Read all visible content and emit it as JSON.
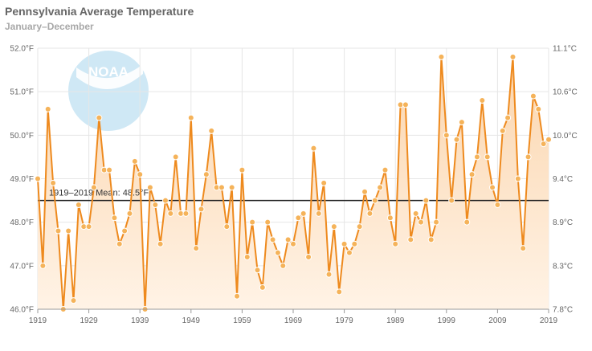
{
  "header": {
    "title": "Pennsylvania Average Temperature",
    "subtitle": "January–December"
  },
  "logo": {
    "text": "NOAA",
    "icon": "noaa-logo-icon"
  },
  "colors": {
    "line": "#ee8a1e",
    "marker": "#f5b35a",
    "marker_stroke": "#ffffff",
    "area_top": "#fbd5ad",
    "area_bottom": "#fff3e6",
    "mean_line": "#222222",
    "grid": "#e6e6e6",
    "logo": "#bfe0f2"
  },
  "chart_data": {
    "type": "line",
    "title": "Pennsylvania Average Temperature",
    "subtitle": "January–December",
    "x": [
      1919,
      1920,
      1921,
      1922,
      1923,
      1924,
      1925,
      1926,
      1927,
      1928,
      1929,
      1930,
      1931,
      1932,
      1933,
      1934,
      1935,
      1936,
      1937,
      1938,
      1939,
      1940,
      1941,
      1942,
      1943,
      1944,
      1945,
      1946,
      1947,
      1948,
      1949,
      1950,
      1951,
      1952,
      1953,
      1954,
      1955,
      1956,
      1957,
      1958,
      1959,
      1960,
      1961,
      1962,
      1963,
      1964,
      1965,
      1966,
      1967,
      1968,
      1969,
      1970,
      1971,
      1972,
      1973,
      1974,
      1975,
      1976,
      1977,
      1978,
      1979,
      1980,
      1981,
      1982,
      1983,
      1984,
      1985,
      1986,
      1987,
      1988,
      1989,
      1990,
      1991,
      1992,
      1993,
      1994,
      1995,
      1996,
      1997,
      1998,
      1999,
      2000,
      2001,
      2002,
      2003,
      2004,
      2005,
      2006,
      2007,
      2008,
      2009,
      2010,
      2011,
      2012,
      2013,
      2014,
      2015,
      2016,
      2017,
      2018,
      2019
    ],
    "series": [
      {
        "values": [
          49.0,
          47.0,
          50.6,
          48.9,
          47.8,
          46.0,
          47.8,
          46.2,
          48.4,
          47.9,
          47.9,
          48.8,
          50.4,
          49.2,
          49.2,
          48.1,
          47.5,
          47.8,
          48.2,
          49.4,
          49.1,
          46.0,
          48.8,
          48.4,
          47.5,
          48.5,
          48.2,
          49.5,
          48.2,
          48.2,
          50.4,
          47.4,
          48.3,
          49.1,
          50.1,
          48.8,
          48.8,
          47.9,
          48.8,
          46.3,
          49.2,
          47.2,
          48.0,
          46.9,
          46.5,
          48.0,
          47.6,
          47.3,
          47.0,
          47.6,
          47.5,
          48.1,
          48.2,
          47.2,
          49.7,
          48.2,
          48.9,
          46.8,
          47.9,
          46.4,
          47.5,
          47.3,
          47.5,
          47.9,
          48.7,
          48.2,
          48.5,
          48.8,
          49.2,
          48.1,
          47.5,
          50.7,
          50.7,
          47.6,
          48.2,
          48.0,
          48.5,
          47.6,
          48.0,
          51.8,
          50.0,
          48.5,
          49.9,
          50.3,
          48.0,
          49.1,
          49.5,
          50.8,
          49.5,
          48.8,
          48.4,
          50.1,
          50.4,
          51.8,
          49.0,
          47.4,
          49.5,
          50.9,
          50.6,
          49.8,
          49.9
        ]
      }
    ],
    "y_left": {
      "ticks": [
        "46.0°F",
        "47.0°F",
        "48.0°F",
        "49.0°F",
        "50.0°F",
        "51.0°F",
        "52.0°F"
      ],
      "lim": [
        46.0,
        52.0
      ]
    },
    "y_right": {
      "ticks": [
        "7.8°C",
        "8.3°C",
        "8.9°C",
        "9.4°C",
        "10.0°C",
        "10.6°C",
        "11.1°C"
      ]
    },
    "x_ticks": [
      "1919",
      "1929",
      "1939",
      "1949",
      "1959",
      "1969",
      "1979",
      "1989",
      "1999",
      "2009",
      "2019"
    ],
    "xlim": [
      1919,
      2019
    ],
    "mean": {
      "value": 48.5,
      "label": "1919–2019 Mean: 48.5°F"
    },
    "grid": true,
    "legend": "none"
  }
}
